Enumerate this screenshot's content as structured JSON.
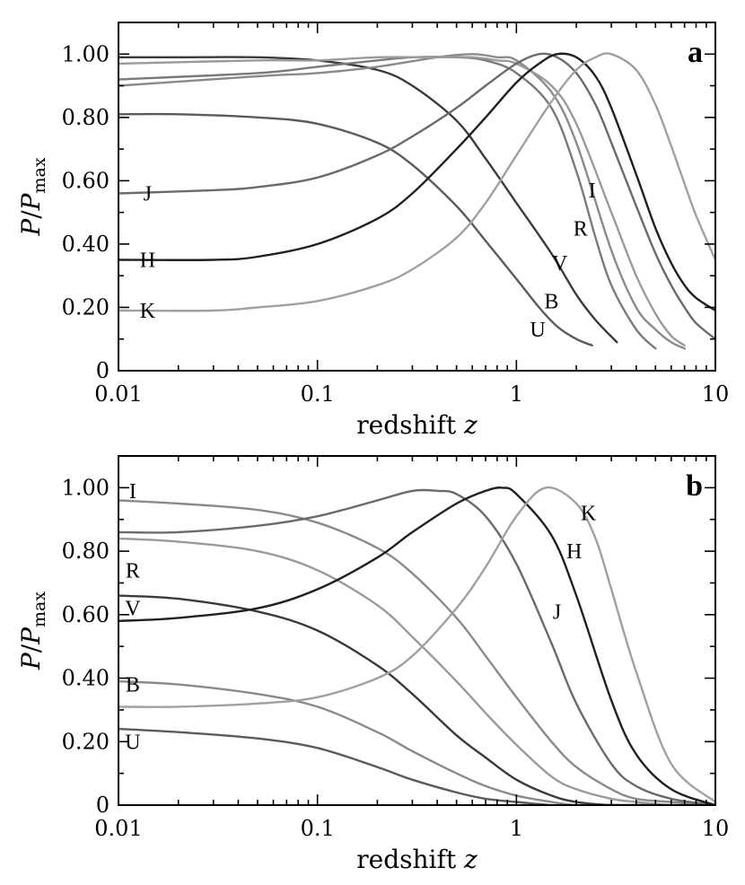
{
  "chart_data": [
    {
      "panel": "a",
      "type": "line",
      "xlabel": "redshift z",
      "ylabel": "P/Pmax",
      "xscale": "log",
      "xlim": [
        0.01,
        10
      ],
      "ylim": [
        0,
        1.1
      ],
      "x_ticks": [
        "0.01",
        "0.1",
        "1",
        "10"
      ],
      "y_ticks": [
        "0",
        "0.20",
        "0.40",
        "0.60",
        "0.80",
        "1.00"
      ],
      "grid": false,
      "series": [
        {
          "name": "U",
          "color": "#5a5a5a",
          "x": [
            0.01,
            0.02,
            0.05,
            0.1,
            0.2,
            0.3,
            0.5,
            0.7,
            1.0,
            1.3,
            1.6,
            2.0,
            2.4
          ],
          "y": [
            0.81,
            0.81,
            0.8,
            0.78,
            0.72,
            0.65,
            0.52,
            0.41,
            0.29,
            0.2,
            0.14,
            0.1,
            0.08
          ]
        },
        {
          "name": "B",
          "color": "#3a3a3a",
          "x": [
            0.01,
            0.02,
            0.05,
            0.1,
            0.2,
            0.3,
            0.5,
            0.7,
            1.0,
            1.5,
            2.0,
            2.5,
            3.2
          ],
          "y": [
            0.99,
            0.99,
            0.99,
            0.98,
            0.95,
            0.9,
            0.79,
            0.67,
            0.53,
            0.37,
            0.24,
            0.16,
            0.09
          ]
        },
        {
          "name": "V",
          "color": "#7a7a7a",
          "x": [
            0.01,
            0.05,
            0.1,
            0.2,
            0.3,
            0.5,
            0.7,
            1.0,
            1.5,
            2.0,
            2.5,
            3.0,
            4.0,
            5.0
          ],
          "y": [
            0.92,
            0.94,
            0.96,
            0.98,
            0.99,
            0.99,
            0.98,
            0.94,
            0.83,
            0.63,
            0.42,
            0.27,
            0.13,
            0.07
          ]
        },
        {
          "name": "R",
          "color": "#8a8a8a",
          "x": [
            0.01,
            0.05,
            0.1,
            0.2,
            0.4,
            0.6,
            0.8,
            1.0,
            1.5,
            2.0,
            3.0,
            4.0,
            5.0,
            6.0,
            7.0
          ],
          "y": [
            0.9,
            0.93,
            0.94,
            0.96,
            0.99,
            1.0,
            0.99,
            0.98,
            0.88,
            0.72,
            0.38,
            0.2,
            0.13,
            0.09,
            0.07
          ]
        },
        {
          "name": "I",
          "color": "#9a9a9a",
          "x": [
            0.01,
            0.05,
            0.1,
            0.2,
            0.4,
            0.6,
            0.8,
            1.0,
            1.5,
            2.0,
            3.0,
            4.0,
            5.0,
            6.0,
            7.0
          ],
          "y": [
            0.97,
            0.98,
            0.98,
            0.99,
            0.99,
            0.99,
            0.98,
            0.97,
            0.9,
            0.78,
            0.5,
            0.3,
            0.18,
            0.11,
            0.08
          ]
        },
        {
          "name": "J",
          "color": "#6a6a6a",
          "x": [
            0.01,
            0.03,
            0.05,
            0.1,
            0.2,
            0.3,
            0.5,
            0.7,
            1.0,
            1.3,
            1.6,
            2.0,
            2.5,
            3.0,
            4.0,
            5.0,
            6.0,
            7.0,
            8.0,
            10.0
          ],
          "y": [
            0.56,
            0.57,
            0.58,
            0.61,
            0.68,
            0.74,
            0.83,
            0.9,
            0.97,
            1.0,
            0.99,
            0.94,
            0.84,
            0.72,
            0.52,
            0.37,
            0.27,
            0.2,
            0.15,
            0.1
          ]
        },
        {
          "name": "H",
          "color": "#202020",
          "x": [
            0.01,
            0.03,
            0.05,
            0.1,
            0.2,
            0.3,
            0.5,
            0.7,
            1.0,
            1.3,
            1.6,
            2.0,
            2.5,
            3.0,
            4.0,
            5.0,
            6.0,
            7.0,
            8.0,
            10.0
          ],
          "y": [
            0.35,
            0.35,
            0.36,
            0.4,
            0.48,
            0.56,
            0.7,
            0.8,
            0.91,
            0.97,
            1.0,
            0.99,
            0.93,
            0.83,
            0.62,
            0.45,
            0.34,
            0.27,
            0.23,
            0.19
          ]
        },
        {
          "name": "K",
          "color": "#a0a0a0",
          "x": [
            0.01,
            0.03,
            0.05,
            0.1,
            0.2,
            0.3,
            0.5,
            0.7,
            1.0,
            1.5,
            2.0,
            2.5,
            3.0,
            4.0,
            5.0,
            6.0,
            7.0,
            8.0,
            10.0
          ],
          "y": [
            0.19,
            0.19,
            0.2,
            0.22,
            0.27,
            0.32,
            0.42,
            0.53,
            0.68,
            0.85,
            0.95,
            0.99,
            1.0,
            0.95,
            0.84,
            0.71,
            0.59,
            0.49,
            0.35
          ]
        }
      ],
      "labels": [
        {
          "text": "J",
          "x": 0.014,
          "y": 0.56
        },
        {
          "text": "H",
          "x": 0.014,
          "y": 0.35
        },
        {
          "text": "K",
          "x": 0.014,
          "y": 0.19
        },
        {
          "text": "I",
          "x": 2.4,
          "y": 0.57
        },
        {
          "text": "R",
          "x": 2.1,
          "y": 0.45
        },
        {
          "text": "V",
          "x": 1.65,
          "y": 0.34
        },
        {
          "text": "B",
          "x": 1.5,
          "y": 0.22
        },
        {
          "text": "U",
          "x": 1.28,
          "y": 0.13
        }
      ],
      "panel_letter": "a"
    },
    {
      "panel": "b",
      "type": "line",
      "xlabel": "redshift z",
      "ylabel": "P/Pmax",
      "xscale": "log",
      "xlim": [
        0.01,
        10
      ],
      "ylim": [
        0,
        1.1
      ],
      "x_ticks": [
        "0.01",
        "0.1",
        "1",
        "10"
      ],
      "y_ticks": [
        "0",
        "0.20",
        "0.40",
        "0.60",
        "0.80",
        "1.00"
      ],
      "grid": false,
      "series": [
        {
          "name": "I",
          "color": "#8a8a8a",
          "x": [
            0.01,
            0.02,
            0.05,
            0.1,
            0.2,
            0.3,
            0.5,
            0.7,
            1.0,
            1.5,
            2.0,
            3.0,
            4.0,
            6.0,
            10.0
          ],
          "y": [
            0.96,
            0.95,
            0.93,
            0.89,
            0.81,
            0.73,
            0.59,
            0.47,
            0.34,
            0.2,
            0.12,
            0.05,
            0.02,
            0.01,
            0.0
          ]
        },
        {
          "name": "R",
          "color": "#9a9a9a",
          "x": [
            0.01,
            0.02,
            0.05,
            0.1,
            0.2,
            0.3,
            0.5,
            0.7,
            1.0,
            1.5,
            2.0,
            3.0,
            4.0,
            6.0,
            10.0
          ],
          "y": [
            0.84,
            0.83,
            0.8,
            0.74,
            0.63,
            0.53,
            0.39,
            0.29,
            0.19,
            0.09,
            0.05,
            0.02,
            0.01,
            0.0,
            0.0
          ]
        },
        {
          "name": "V",
          "color": "#3a3a3a",
          "x": [
            0.01,
            0.02,
            0.05,
            0.1,
            0.2,
            0.3,
            0.5,
            0.7,
            1.0,
            1.5,
            2.0,
            3.0,
            4.0,
            6.0,
            10.0
          ],
          "y": [
            0.66,
            0.65,
            0.61,
            0.55,
            0.44,
            0.35,
            0.22,
            0.15,
            0.08,
            0.03,
            0.01,
            0.0,
            0.0,
            0.0,
            0.0
          ]
        },
        {
          "name": "B",
          "color": "#8a8a8a",
          "x": [
            0.01,
            0.02,
            0.05,
            0.1,
            0.2,
            0.3,
            0.5,
            0.7,
            1.0,
            1.5,
            2.0,
            3.0,
            4.0,
            6.0,
            10.0
          ],
          "y": [
            0.39,
            0.38,
            0.35,
            0.31,
            0.23,
            0.17,
            0.1,
            0.06,
            0.03,
            0.01,
            0.0,
            0.0,
            0.0,
            0.0,
            0.0
          ]
        },
        {
          "name": "U",
          "color": "#5a5a5a",
          "x": [
            0.01,
            0.02,
            0.05,
            0.1,
            0.2,
            0.3,
            0.5,
            0.7,
            1.0,
            1.5,
            2.0,
            3.0,
            4.0,
            6.0,
            10.0
          ],
          "y": [
            0.24,
            0.23,
            0.21,
            0.18,
            0.12,
            0.08,
            0.04,
            0.02,
            0.01,
            0.0,
            0.0,
            0.0,
            0.0,
            0.0,
            0.0
          ]
        },
        {
          "name": "J",
          "color": "#6a6a6a",
          "x": [
            0.01,
            0.02,
            0.05,
            0.1,
            0.2,
            0.3,
            0.4,
            0.5,
            0.7,
            1.0,
            1.5,
            2.0,
            3.0,
            4.0,
            6.0,
            10.0
          ],
          "y": [
            0.86,
            0.86,
            0.88,
            0.91,
            0.96,
            0.99,
            0.99,
            0.98,
            0.91,
            0.76,
            0.51,
            0.32,
            0.13,
            0.06,
            0.02,
            0.0
          ]
        },
        {
          "name": "H",
          "color": "#202020",
          "x": [
            0.01,
            0.02,
            0.05,
            0.1,
            0.2,
            0.3,
            0.5,
            0.7,
            0.85,
            1.0,
            1.5,
            2.0,
            3.0,
            4.0,
            6.0,
            10.0
          ],
          "y": [
            0.58,
            0.59,
            0.62,
            0.68,
            0.78,
            0.86,
            0.95,
            0.99,
            1.0,
            0.98,
            0.85,
            0.66,
            0.33,
            0.16,
            0.05,
            0.0
          ]
        },
        {
          "name": "K",
          "color": "#a0a0a0",
          "x": [
            0.01,
            0.02,
            0.05,
            0.1,
            0.2,
            0.3,
            0.5,
            0.7,
            1.0,
            1.4,
            2.0,
            2.5,
            3.0,
            4.0,
            6.0,
            10.0
          ],
          "y": [
            0.31,
            0.31,
            0.32,
            0.34,
            0.4,
            0.47,
            0.62,
            0.75,
            0.91,
            1.0,
            0.95,
            0.84,
            0.68,
            0.42,
            0.13,
            0.01
          ]
        }
      ],
      "labels": [
        {
          "text": "I",
          "x": 0.0118,
          "y": 0.99
        },
        {
          "text": "R",
          "x": 0.0118,
          "y": 0.74
        },
        {
          "text": "V",
          "x": 0.0118,
          "y": 0.62
        },
        {
          "text": "B",
          "x": 0.0118,
          "y": 0.38
        },
        {
          "text": "U",
          "x": 0.0118,
          "y": 0.2
        },
        {
          "text": "K",
          "x": 2.3,
          "y": 0.92
        },
        {
          "text": "H",
          "x": 1.95,
          "y": 0.8
        },
        {
          "text": "J",
          "x": 1.6,
          "y": 0.61
        }
      ],
      "panel_letter": "b"
    }
  ]
}
